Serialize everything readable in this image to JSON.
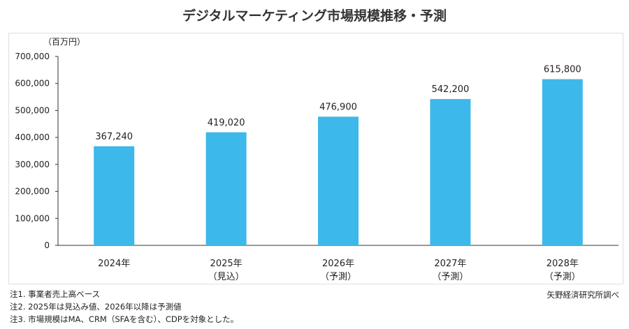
{
  "chart_data": {
    "type": "bar",
    "title": "デジタルマーケティング市場規模推移・予測",
    "ylabel": "（百万円）",
    "xlabel": "",
    "categories": [
      "2024年",
      "2025年",
      "2026年",
      "2027年",
      "2028年"
    ],
    "category_sublabels": [
      "",
      "（見込）",
      "（予測）",
      "（予測）",
      "（予測）"
    ],
    "values": [
      367240,
      419020,
      476900,
      542200,
      615800
    ],
    "data_labels": [
      "367,240",
      "419,020",
      "476,900",
      "542,200",
      "615,800"
    ],
    "ylim": [
      0,
      700000
    ],
    "yticks": [
      0,
      100000,
      200000,
      300000,
      400000,
      500000,
      600000,
      700000
    ],
    "ytick_labels": [
      "0",
      "100,000",
      "200,000",
      "300,000",
      "400,000",
      "500,000",
      "600,000",
      "700,000"
    ],
    "grid": false,
    "bar_color": "#3db8ea"
  },
  "notes": [
    "注1. 事業者売上高ベース",
    "注2. 2025年は見込み値、2026年以降は予測値",
    "注3. 市場規模はMA、CRM（SFAを含む）、CDPを対象とした。"
  ],
  "source": "矢野経済研究所調べ"
}
